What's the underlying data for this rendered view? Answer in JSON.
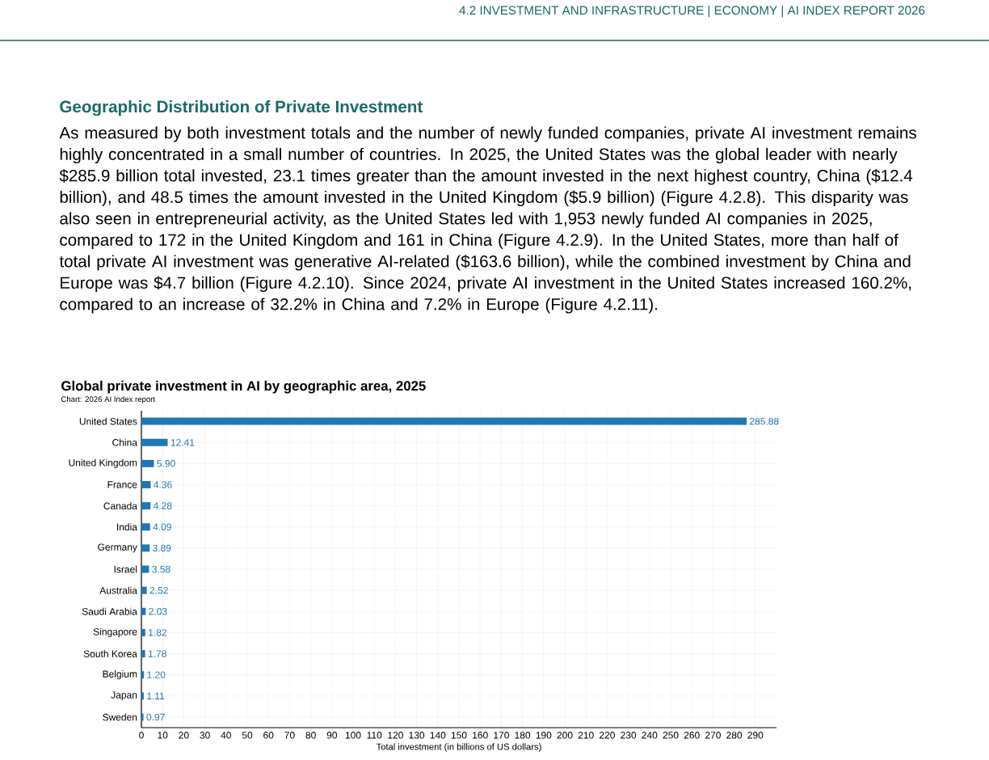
{
  "chart_data": {
    "type": "bar",
    "orientation": "horizontal",
    "title": "Global private investment in AI by geographic area, 2025",
    "subtitle": "Chart: 2026 AI Index report",
    "xlabel": "Total investment (in billions of US dollars)",
    "annotations": [
      "4.2 INVESTMENT AND INFRASTRUCTURE  |  ECONOMY  |  AI INDEX REPORT 2026",
      "Geographic Distribution of Private Investment",
      "As measured by both investment totals and the number of newly funded companies, private AI investment remains highly concentrated in a small number of countries. In 2025, the United States was the global leader with nearly $285.9 billion total invested, 23.1 times greater than the amount invested in the next highest country, China ($12.4 billion), and 48.5 times the amount invested in the United Kingdom ($5.9 billion) (Figure 4.2.8). This disparity was also seen in entrepreneurial activity, as the United States led with 1,953 newly funded AI companies in 2025, compared to 172 in the United Kingdom and 161 in China (Figure 4.2.9). In the United States, more than half of total private AI investment was generative AI-related ($163.6 billion), while the combined investment by China and Europe was $4.7 billion (Figure 4.2.10). Since 2024, private AI investment in the United States increased 160.2%, compared to an increase of 32.2% in China and 7.2% in Europe (Figure 4.2.11)."
    ],
    "categories": [
      "United States",
      "China",
      "United Kingdom",
      "France",
      "Canada",
      "India",
      "Germany",
      "Israel",
      "Australia",
      "Saudi Arabia",
      "Singapore",
      "South Korea",
      "Belgium",
      "Japan",
      "Sweden"
    ],
    "values": [
      285.88,
      12.41,
      5.9,
      4.36,
      4.28,
      4.09,
      3.89,
      3.58,
      2.52,
      2.03,
      1.82,
      1.78,
      1.2,
      1.11,
      0.97
    ],
    "value_labels": [
      "285.88",
      "12.41",
      "5.90",
      "4.36",
      "4.28",
      "4.09",
      "3.89",
      "3.58",
      "2.52",
      "2.03",
      "1.82",
      "1.78",
      "1.20",
      "1.11",
      "0.97"
    ],
    "color": "#1f77b4",
    "xlim": [
      0,
      300
    ],
    "xticks": [
      0,
      10,
      20,
      30,
      40,
      50,
      60,
      70,
      80,
      90,
      100,
      110,
      120,
      130,
      140,
      150,
      160,
      170,
      180,
      190,
      200,
      210,
      220,
      230,
      240,
      250,
      260,
      270,
      280,
      290
    ],
    "grid": true
  }
}
